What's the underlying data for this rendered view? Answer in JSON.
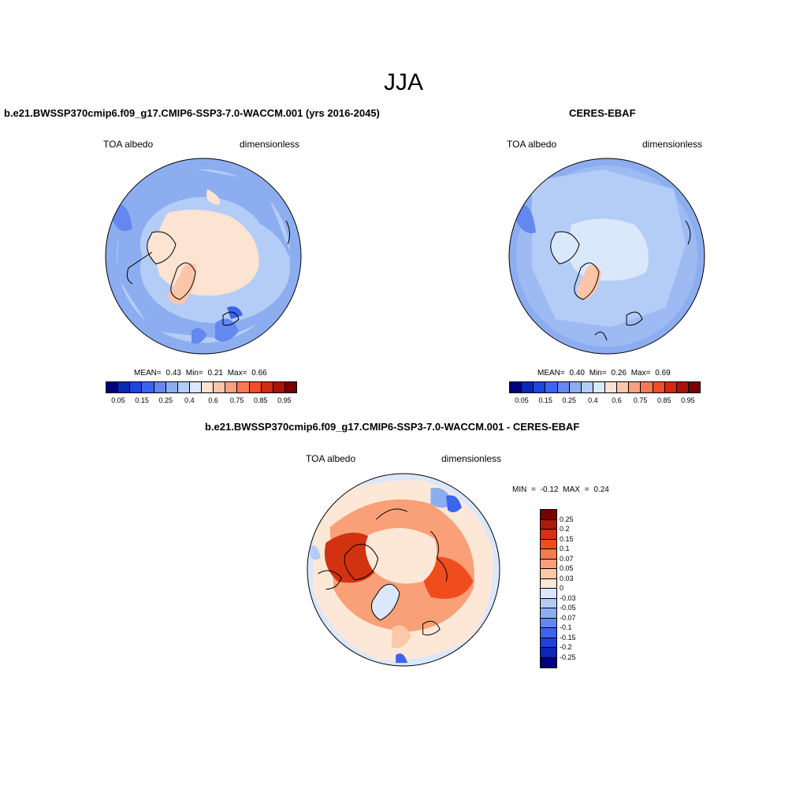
{
  "season": "JJA",
  "panels": {
    "model": {
      "title": "b.e21.BWSSP370cmip6.f09_g17.CMIP6-SSP3-7.0-WACCM.001 (yrs 2016-2045)",
      "variable": "TOA albedo",
      "units": "dimensionless",
      "stats": "MEAN=  0.43  Min=  0.21  Max=  0.66"
    },
    "obs": {
      "title": "CERES-EBAF",
      "variable": "TOA albedo",
      "units": "dimensionless",
      "stats": "MEAN=  0.40  Min=  0.26  Max=  0.69"
    },
    "diff": {
      "title": "b.e21.BWSSP370cmip6.f09_g17.CMIP6-SSP3-7.0-WACCM.001 - CERES-EBAF",
      "variable": "TOA albedo",
      "units": "dimensionless",
      "minmax": "MIN =  -0.12 MAX =   0.24"
    }
  },
  "colorbar_main": {
    "colors": [
      "#00007f",
      "#0a2ab4",
      "#1e46dc",
      "#3c64f0",
      "#6488f0",
      "#8caef0",
      "#b4cdf7",
      "#dae8fb",
      "#fde3d2",
      "#fcc5a8",
      "#f9a07e",
      "#f57a54",
      "#f04d28",
      "#d22a10",
      "#a8140a",
      "#7a0000"
    ],
    "labels": [
      "0.05",
      "0.15",
      "0.25",
      "0.4",
      "0.6",
      "0.75",
      "0.85",
      "0.95"
    ]
  },
  "colorbar_diff": {
    "colors": [
      "#7a0000",
      "#a81e0a",
      "#d2320f",
      "#f04d1e",
      "#f57a50",
      "#f9a078",
      "#fcc8aa",
      "#fde8d8",
      "#dbe7fb",
      "#b3cbf5",
      "#8cadf0",
      "#6486ee",
      "#3c64ef",
      "#1e40dc",
      "#0a28b4",
      "#00007f"
    ],
    "labels": [
      "0.25",
      "0.2",
      "0.15",
      "0.1",
      "0.07",
      "0.05",
      "0.03",
      "0",
      "-0.03",
      "-0.05",
      "-0.07",
      "-0.1",
      "-0.15",
      "-0.2",
      "-0.25"
    ]
  }
}
